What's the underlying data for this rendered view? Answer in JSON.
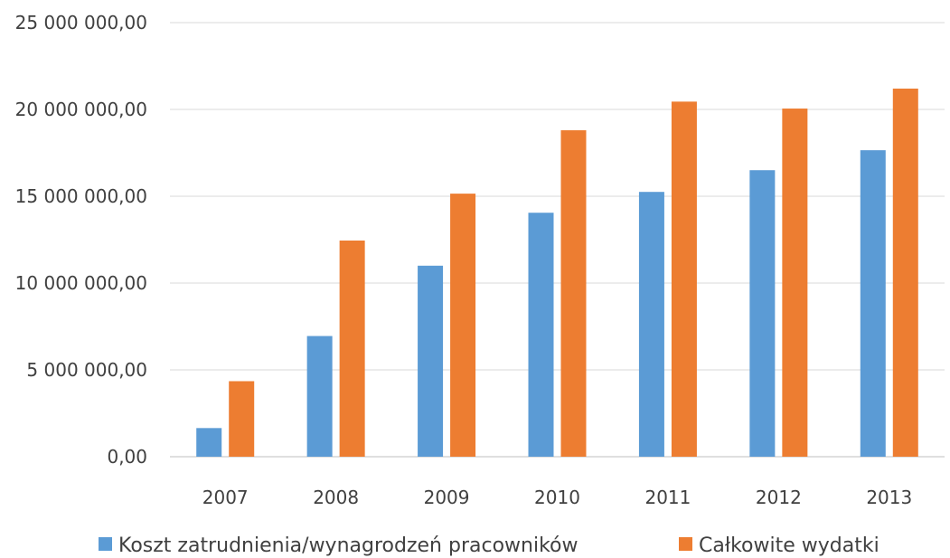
{
  "chart_data": {
    "type": "bar",
    "categories": [
      "2007",
      "2008",
      "2009",
      "2010",
      "2011",
      "2012",
      "2013"
    ],
    "series": [
      {
        "name": "Koszt zatrudnienia/wynagrodzeń pracowników",
        "color": "#5b9bd5",
        "values": [
          1650000,
          6950000,
          11000000,
          14050000,
          15250000,
          16500000,
          17650000
        ]
      },
      {
        "name": "Całkowite wydatki",
        "color": "#ed7d31",
        "values": [
          4350000,
          12450000,
          15150000,
          18800000,
          20450000,
          20050000,
          21200000
        ]
      }
    ],
    "ylim": [
      0,
      25000000
    ],
    "yticks": [
      0,
      5000000,
      10000000,
      15000000,
      20000000,
      25000000
    ],
    "ytick_labels": [
      "0,00",
      "5 000 000,00",
      "10 000 000,00",
      "15 000 000,00",
      "20 000 000,00",
      "25 000 000,00"
    ],
    "grid": true,
    "legend_position": "bottom",
    "title": "",
    "xlabel": "",
    "ylabel": ""
  }
}
